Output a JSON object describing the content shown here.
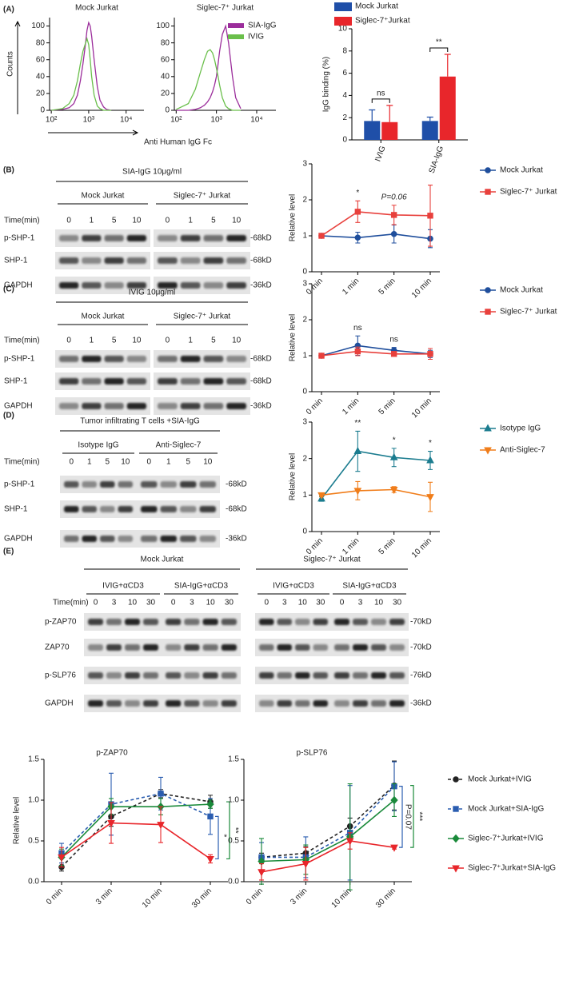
{
  "panels": [
    "(A)",
    "(B)",
    "(C)",
    "(D)",
    "(E)"
  ],
  "chart_data": [
    {
      "type": "line",
      "title": "Mock Jurkat",
      "ylabel": "Counts",
      "xlabel": "Anti Human IgG Fc",
      "xscale": "log",
      "xlim": [
        90,
        30000
      ],
      "ylim": [
        0,
        110
      ],
      "xticks": [
        {
          "value": 100,
          "label": "10²"
        },
        {
          "value": 1000,
          "label": "10³"
        },
        {
          "value": 10000,
          "label": "10⁴"
        }
      ],
      "yticks": [
        0,
        20,
        40,
        60,
        80,
        100
      ],
      "x": [
        100,
        200,
        300,
        400,
        500,
        600,
        700,
        800,
        900,
        1000,
        1100,
        1200,
        1400,
        1700,
        2000,
        2500,
        3000,
        4000
      ],
      "series": [
        {
          "color": "#9b2d9b",
          "values": [
            0,
            1,
            3,
            8,
            18,
            35,
            55,
            75,
            95,
            104,
            100,
            88,
            60,
            28,
            12,
            4,
            1,
            0
          ]
        },
        {
          "color": "#6abf4b",
          "values": [
            0,
            2,
            8,
            18,
            35,
            55,
            70,
            78,
            85,
            78,
            60,
            40,
            18,
            5,
            2,
            0,
            0,
            0
          ]
        }
      ]
    },
    {
      "type": "line",
      "title": "Siglec-7⁺ Jurkat",
      "legend": "top-right",
      "xscale": "log",
      "xlim": [
        90,
        30000
      ],
      "ylim": [
        0,
        110
      ],
      "xticks": [
        {
          "value": 100,
          "label": "10²"
        },
        {
          "value": 1000,
          "label": "10³"
        },
        {
          "value": 10000,
          "label": "10⁴"
        }
      ],
      "yticks": [
        0,
        20,
        40,
        60,
        80,
        100
      ],
      "x": [
        100,
        200,
        300,
        400,
        500,
        600,
        700,
        800,
        900,
        1000,
        1100,
        1200,
        1400,
        1700,
        2000,
        2500,
        3000,
        4000
      ],
      "series": [
        {
          "name": "SIA-IgG",
          "color": "#9b2d9b",
          "values": [
            0,
            0,
            1,
            3,
            6,
            10,
            15,
            22,
            30,
            40,
            55,
            70,
            90,
            100,
            80,
            40,
            15,
            2
          ]
        },
        {
          "name": "IVIG",
          "color": "#6abf4b",
          "values": [
            1,
            8,
            25,
            45,
            60,
            70,
            72,
            68,
            60,
            50,
            40,
            30,
            15,
            5,
            2,
            0,
            0,
            0
          ]
        }
      ]
    },
    {
      "type": "bar",
      "ylabel": "IgG binding (%)",
      "legend": "top",
      "categories": [
        "IVIG",
        "SIA-IgG"
      ],
      "ylim": [
        0,
        10
      ],
      "yticks": [
        0,
        2,
        4,
        6,
        8,
        10
      ],
      "series": [
        {
          "name": "Mock Jurkat",
          "color": "#1f4fa8",
          "values": [
            1.7,
            1.7
          ],
          "errors": [
            1.0,
            0.35
          ]
        },
        {
          "name": "Siglec-7⁺Jurkat",
          "color": "#e8262b",
          "values": [
            1.6,
            5.7
          ],
          "errors": [
            1.5,
            2.0
          ]
        }
      ],
      "annotations": [
        {
          "text": "ns",
          "category": "IVIG"
        },
        {
          "text": "**",
          "category": "SIA-IgG"
        }
      ]
    },
    {
      "type": "line",
      "ylabel": "Relative level",
      "legend": "right",
      "categories": [
        "0 min",
        "1 min",
        "5 min",
        "10 min"
      ],
      "ylim": [
        0,
        3
      ],
      "yticks": [
        0,
        1,
        2,
        3
      ],
      "series": [
        {
          "name": "Mock Jurkat",
          "color": "#1f4e9c",
          "marker": "circle",
          "values": [
            1,
            0.95,
            1.05,
            0.92
          ],
          "errors": [
            0.02,
            0.15,
            0.25,
            0.25
          ]
        },
        {
          "name": "Siglec-7⁺ Jurkat",
          "color": "#e8403c",
          "marker": "square",
          "values": [
            1,
            1.67,
            1.58,
            1.56
          ],
          "errors": [
            0.03,
            0.3,
            0.27,
            0.85
          ]
        }
      ],
      "annotations": [
        {
          "text": "*",
          "category": "1 min"
        },
        {
          "text": "P=0.06",
          "category": "5 min"
        }
      ]
    },
    {
      "type": "line",
      "ylabel": "Relative level",
      "legend": "right",
      "categories": [
        "0 min",
        "1 min",
        "5 min",
        "10 min"
      ],
      "ylim": [
        0,
        3
      ],
      "yticks": [
        0,
        1,
        2,
        3
      ],
      "series": [
        {
          "name": "Mock Jurkat",
          "color": "#1f4e9c",
          "marker": "circle",
          "values": [
            1,
            1.28,
            1.15,
            1.05
          ],
          "errors": [
            0.03,
            0.27,
            0.08,
            0.1
          ]
        },
        {
          "name": "Siglec-7⁺ Jurkat",
          "color": "#e8403c",
          "marker": "square",
          "values": [
            1,
            1.12,
            1.05,
            1.05
          ],
          "errors": [
            0.03,
            0.12,
            0.05,
            0.15
          ]
        }
      ],
      "annotations": [
        {
          "text": "ns",
          "category": "1 min"
        },
        {
          "text": "ns",
          "category": "5 min"
        }
      ]
    },
    {
      "type": "line",
      "ylabel": "Relative level",
      "legend": "right",
      "categories": [
        "0 min",
        "1 min",
        "5 min",
        "10 min"
      ],
      "ylim": [
        0,
        3
      ],
      "yticks": [
        0,
        1,
        2,
        3
      ],
      "series": [
        {
          "name": "Isotype IgG",
          "color": "#1b7c8f",
          "marker": "triangle",
          "values": [
            0.9,
            2.2,
            2.03,
            1.95
          ],
          "errors": [
            0.07,
            0.55,
            0.25,
            0.25
          ]
        },
        {
          "name": "Anti-Siglec-7",
          "color": "#f07d1a",
          "marker": "triangle-down",
          "values": [
            1.0,
            1.12,
            1.15,
            0.95
          ],
          "errors": [
            0.05,
            0.25,
            0.08,
            0.4
          ]
        }
      ],
      "annotations": [
        {
          "text": "**",
          "category": "1 min"
        },
        {
          "text": "*",
          "category": "5 min"
        },
        {
          "text": "*",
          "category": "10 min"
        }
      ]
    },
    {
      "type": "line",
      "title": "p-ZAP70",
      "ylabel": "Relative level",
      "categories": [
        "0 min",
        "3 min",
        "10 min",
        "30 min"
      ],
      "ylim": [
        0,
        1.5
      ],
      "yticks": [
        {
          "value": 0,
          "label": "0.0"
        },
        {
          "value": 0.5,
          "label": "0.5"
        },
        {
          "value": 1,
          "label": "1.0"
        },
        {
          "value": 1.5,
          "label": "1.5"
        }
      ],
      "series": [
        {
          "color": "#222222",
          "marker": "circle",
          "dash": true,
          "values": [
            0.18,
            0.8,
            1.08,
            0.98
          ],
          "errors": [
            0.05,
            0.12,
            0.05,
            0.08
          ]
        },
        {
          "color": "#2a5db0",
          "marker": "square",
          "dash": true,
          "values": [
            0.35,
            0.95,
            1.08,
            0.8
          ],
          "errors": [
            0.12,
            0.38,
            0.2,
            0.22
          ]
        },
        {
          "color": "#1a8a3a",
          "marker": "diamond",
          "values": [
            0.3,
            0.92,
            0.92,
            0.95
          ],
          "errors": [
            0.1,
            0.1,
            0.1,
            0.05
          ]
        },
        {
          "color": "#e8262b",
          "marker": "triangle-down",
          "values": [
            0.3,
            0.72,
            0.7,
            0.28
          ],
          "errors": [
            0.12,
            0.25,
            0.22,
            0.05
          ]
        }
      ],
      "annotations": [
        {
          "text": "*",
          "color": "#2a5db0"
        },
        {
          "text": "**",
          "color": "#1a8a3a"
        }
      ]
    },
    {
      "type": "line",
      "title": "p-SLP76",
      "legend": "right",
      "categories": [
        "0 min",
        "3 min",
        "10 min",
        "30 min"
      ],
      "ylim": [
        0,
        1.5
      ],
      "yticks": [
        {
          "value": 0,
          "label": "0.0"
        },
        {
          "value": 0.5,
          "label": "0.5"
        },
        {
          "value": 1,
          "label": "1.0"
        },
        {
          "value": 1.5,
          "label": "1.5"
        }
      ],
      "series": [
        {
          "name": "Mock Jurkat+IVIG",
          "color": "#222222",
          "marker": "circle",
          "dash": true,
          "values": [
            0.3,
            0.35,
            0.68,
            1.18
          ],
          "errors": [
            0.05,
            0.08,
            0.1,
            0.3
          ]
        },
        {
          "name": "Mock Jurkat+SIA-IgG",
          "color": "#2a5db0",
          "marker": "square",
          "dash": true,
          "values": [
            0.3,
            0.3,
            0.6,
            1.17
          ],
          "errors": [
            0.18,
            0.25,
            0.58,
            0.3
          ]
        },
        {
          "name": "Siglec-7⁺Jurkat+IVIG",
          "color": "#1a8a3a",
          "marker": "diamond",
          "values": [
            0.25,
            0.27,
            0.55,
            1.0
          ],
          "errors": [
            0.28,
            0.18,
            0.65,
            0.2
          ]
        },
        {
          "name": "Siglec-7⁺Jurkat+SIA-IgG",
          "color": "#e8262b",
          "marker": "triangle-down",
          "values": [
            0.12,
            0.22,
            0.5,
            0.42
          ],
          "errors": [
            0.1,
            0.2,
            0.1,
            0.02
          ]
        }
      ],
      "annotations": [
        {
          "text": "P=0.07",
          "color": "#2a5db0"
        },
        {
          "text": "***",
          "color": "#1a8a3a"
        }
      ]
    }
  ],
  "blots": [
    {
      "title": "SIA-IgG 10μg/ml",
      "groups": [
        "Mock Jurkat",
        "Siglec-7⁺ Jurkat"
      ],
      "time_label": "Time(min)",
      "lanes": [
        "0",
        "1",
        "5",
        "10"
      ],
      "rows": [
        "p-SHP-1",
        "SHP-1",
        "GAPDH"
      ],
      "sizes": [
        "-68kD",
        "-68kD",
        "-36kD"
      ]
    },
    {
      "title": "IVIG 10μg/ml",
      "groups": [
        "Mock Jurkat",
        "Siglec-7⁺ Jurkat"
      ],
      "time_label": "Time(min)",
      "lanes": [
        "0",
        "1",
        "5",
        "10"
      ],
      "rows": [
        "p-SHP-1",
        "SHP-1",
        "GAPDH"
      ],
      "sizes": [
        "-68kD",
        "-68kD",
        "-36kD"
      ]
    },
    {
      "title": "Tumor infiltrating T cells +SIA-IgG",
      "groups": [
        "Isotype IgG",
        "Anti-Siglec-7"
      ],
      "time_label": "Time(min)",
      "lanes": [
        "0",
        "1",
        "5",
        "10"
      ],
      "rows": [
        "p-SHP-1",
        "SHP-1",
        "GAPDH"
      ],
      "sizes": [
        "-68kD",
        "-68kD",
        "-36kD"
      ]
    },
    {
      "title": "Mock Jurkat",
      "groups": [
        "IVIG+αCD3",
        "SIA-IgG+αCD3"
      ],
      "time_label": "Time(min)",
      "lanes": [
        "0",
        "3",
        "10",
        "30"
      ],
      "rows": [
        "p-ZAP70",
        "ZAP70",
        "p-SLP76",
        "GAPDH"
      ]
    },
    {
      "title": "Siglec-7⁺ Jurkat",
      "groups": [
        "IVIG+αCD3",
        "SIA-IgG+αCD3"
      ],
      "lanes": [
        "0",
        "3",
        "10",
        "30"
      ],
      "sizes": [
        "-70kD",
        "-70kD",
        "-76kD",
        "-36kD"
      ]
    }
  ]
}
